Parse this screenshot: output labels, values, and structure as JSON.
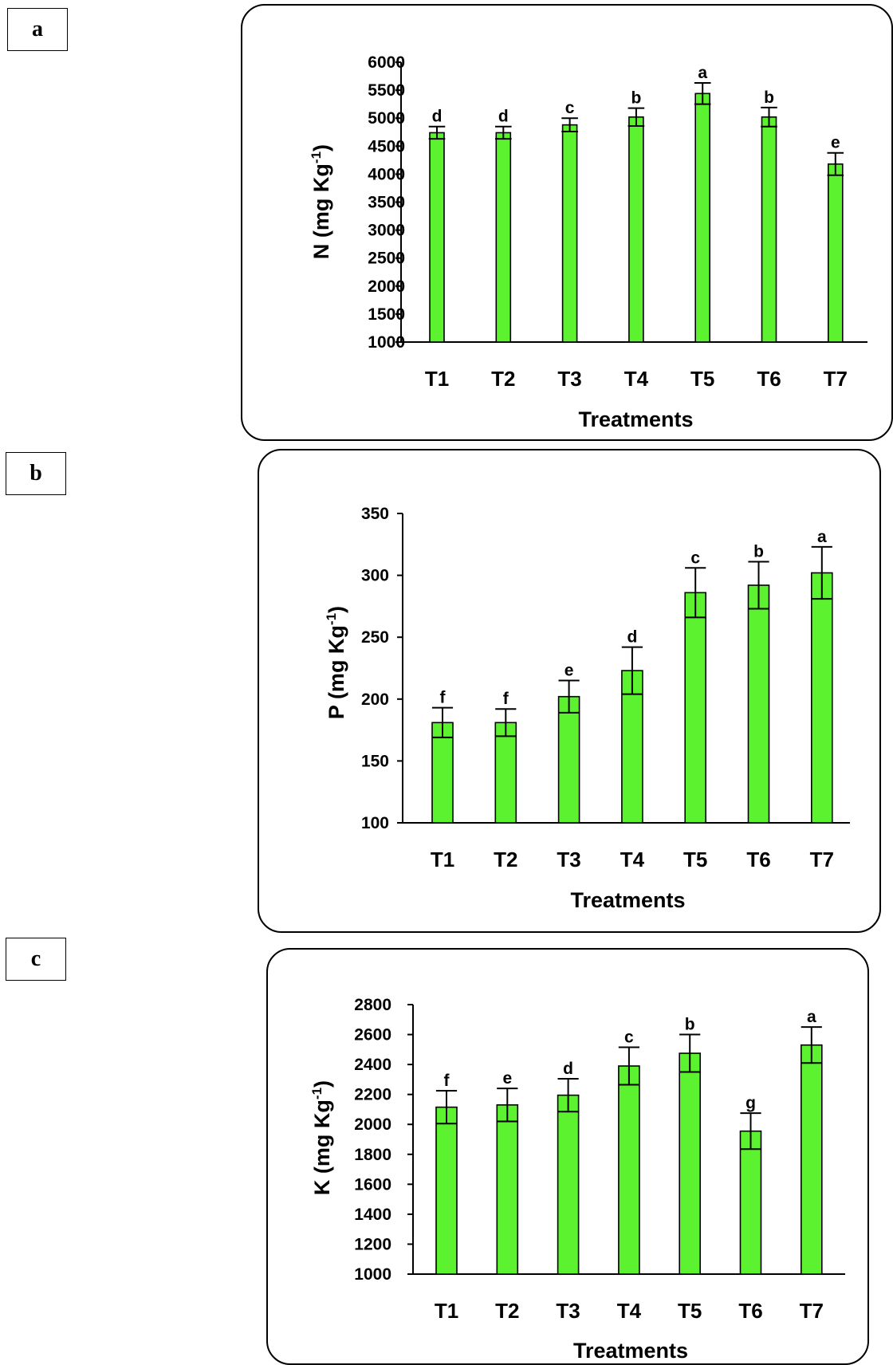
{
  "panels": [
    {
      "tag": "a"
    },
    {
      "tag": "b"
    },
    {
      "tag": "c"
    }
  ],
  "colors": {
    "bar": "#5cf230",
    "outline": "#000000"
  },
  "chart_data": [
    {
      "type": "bar",
      "categories": [
        "T1",
        "T2",
        "T3",
        "T4",
        "T5",
        "T6",
        "T7"
      ],
      "values": [
        4740,
        4740,
        4880,
        5020,
        5440,
        5020,
        4180
      ],
      "errors": [
        110,
        110,
        120,
        160,
        190,
        170,
        200
      ],
      "letters": [
        "d",
        "d",
        "c",
        "b",
        "a",
        "b",
        "e"
      ],
      "xlabel": "Treatments",
      "ylabel": "N (mg Kg",
      "ylabel_sup": "-1",
      "ylabel_end": ")",
      "ylim": [
        1000,
        6000
      ],
      "yticks": [
        1000,
        1500,
        2000,
        2500,
        3000,
        3500,
        4000,
        4500,
        5000,
        5500,
        6000
      ],
      "grid": false
    },
    {
      "type": "bar",
      "categories": [
        "T1",
        "T2",
        "T3",
        "T4",
        "T5",
        "T6",
        "T7"
      ],
      "values": [
        181,
        181,
        202,
        223,
        286,
        292,
        302
      ],
      "errors": [
        12,
        11,
        13,
        19,
        20,
        19,
        21
      ],
      "letters": [
        "f",
        "f",
        "e",
        "d",
        "c",
        "b",
        "a"
      ],
      "xlabel": "Treatments",
      "ylabel": "P (mg Kg",
      "ylabel_sup": "-1",
      "ylabel_end": ")",
      "ylim": [
        100,
        350
      ],
      "yticks": [
        100,
        150,
        200,
        250,
        300,
        350
      ],
      "grid": false
    },
    {
      "type": "bar",
      "categories": [
        "T1",
        "T2",
        "T3",
        "T4",
        "T5",
        "T6",
        "T7"
      ],
      "values": [
        2115,
        2130,
        2195,
        2390,
        2475,
        1955,
        2530
      ],
      "errors": [
        110,
        110,
        110,
        125,
        125,
        120,
        120
      ],
      "letters": [
        "f",
        "e",
        "d",
        "c",
        "b",
        "g",
        "a"
      ],
      "xlabel": "Treatments",
      "ylabel": "K (mg Kg",
      "ylabel_sup": "-1",
      "ylabel_end": ")",
      "ylim": [
        1000,
        2800
      ],
      "yticks": [
        1000,
        1200,
        1400,
        1600,
        1800,
        2000,
        2200,
        2400,
        2600,
        2800
      ],
      "grid": false
    }
  ]
}
